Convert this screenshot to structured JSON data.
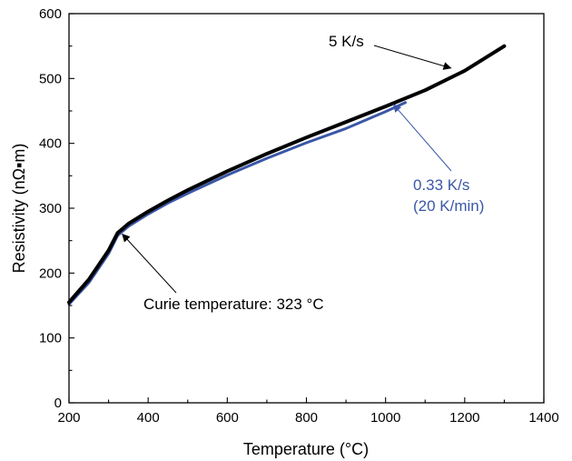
{
  "chart_data": {
    "type": "line",
    "xlabel": "Temperature (°C)",
    "ylabel": "Resistivity (nΩ▪m)",
    "xlim": [
      200,
      1400
    ],
    "ylim": [
      0,
      600
    ],
    "xticks": [
      "200",
      "400",
      "600",
      "800",
      "1000",
      "1200",
      "1400"
    ],
    "yticks": [
      "0",
      "100",
      "200",
      "300",
      "400",
      "500",
      "600"
    ],
    "series": [
      {
        "name": "0.33 K/s (20 K/min)",
        "color": "#3a57a7",
        "x": [
          200,
          250,
          300,
          323,
          350,
          400,
          450,
          500,
          600,
          700,
          800,
          900,
          1000,
          1050
        ],
        "y": [
          152,
          185,
          230,
          258,
          272,
          291,
          308,
          323,
          351,
          377,
          401,
          423,
          449,
          463
        ]
      },
      {
        "name": "5 K/s",
        "color": "#000000",
        "x": [
          200,
          250,
          300,
          323,
          350,
          400,
          450,
          500,
          600,
          700,
          800,
          900,
          1000,
          1100,
          1200,
          1300
        ],
        "y": [
          155,
          190,
          235,
          262,
          276,
          295,
          312,
          328,
          357,
          384,
          409,
          433,
          457,
          482,
          512,
          550
        ]
      }
    ],
    "annotations": [
      {
        "text": "5 K/s",
        "color": "#000000",
        "target_x": 1165,
        "target_y": 516
      },
      {
        "lines": [
          "0.33 K/s",
          "(20 K/min)"
        ],
        "color": "#3a57a7",
        "target_x": 1020,
        "target_y": 460
      },
      {
        "text": "Curie temperature: 323 °C",
        "color": "#000000",
        "target_x": 335,
        "target_y": 260
      }
    ]
  }
}
